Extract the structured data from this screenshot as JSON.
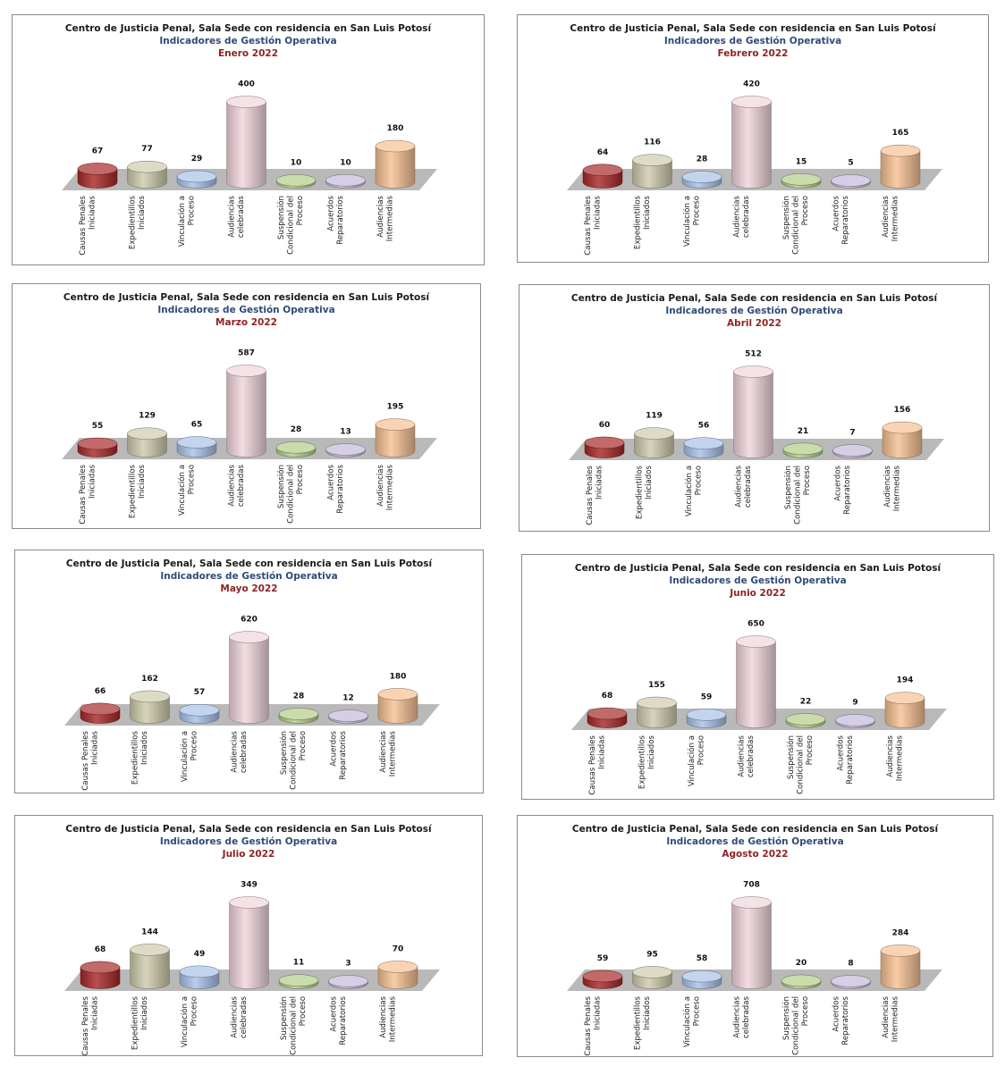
{
  "colors": {
    "series": [
      "#a82828",
      "#cfcbad",
      "#a9c1e8",
      "#f1d6dc",
      "#b3cc88",
      "#c3b9d8",
      "#f6c194"
    ],
    "floor": "#b9b9b9",
    "title_line_1": "#1a1a1a",
    "title_line_2": "#2f4a78",
    "title_line_3": "#8e2424"
  },
  "chart_data": [
    {
      "type": "bar",
      "title": "Centro de Justicia Penal, Sala Sede con residencia en San Luis Potosí",
      "subtitle": "Indicadores de Gestión Operativa",
      "period": "Enero 2022",
      "categories": [
        [
          "Causas Penales",
          "Iniciadas"
        ],
        [
          "Expedientillos",
          "Iniciados"
        ],
        [
          "Vinculación a",
          "Proceso"
        ],
        [
          "Audiencias",
          "celebradas"
        ],
        [
          "Suspensión",
          "Condicional del",
          "Proceso"
        ],
        [
          "Acuerdos",
          "Reparatorios"
        ],
        [
          "Audiencias",
          "Intermedias"
        ]
      ],
      "values": [
        67,
        77,
        29,
        400,
        10,
        10,
        180
      ],
      "ylim": [
        0,
        400
      ]
    },
    {
      "type": "bar",
      "title": "Centro de Justicia Penal, Sala Sede con residencia en San Luis Potosí",
      "subtitle": "Indicadores de Gestión Operativa",
      "period": "Febrero 2022",
      "categories": [
        [
          "Causas Penales",
          "Iniciadas"
        ],
        [
          "Expedientillos",
          "Iniciados"
        ],
        [
          "Vinculación a",
          "Proceso"
        ],
        [
          "Audiencias",
          "celebradas"
        ],
        [
          "Suspensión",
          "Condicional del",
          "Proceso"
        ],
        [
          "Acuerdos",
          "Reparatorios"
        ],
        [
          "Audiencias",
          "Intermedias"
        ]
      ],
      "values": [
        64,
        116,
        28,
        420,
        15,
        5,
        165
      ],
      "ylim": [
        0,
        420
      ]
    },
    {
      "type": "bar",
      "title": "Centro de Justicia Penal, Sala Sede con residencia en San Luis Potosí",
      "subtitle": "Indicadores de Gestión Operativa",
      "period": "Marzo 2022",
      "categories": [
        [
          "Causas Penales",
          "Iniciadas"
        ],
        [
          "Expedientillos",
          "Iniciados"
        ],
        [
          "Vinculación a",
          "Proceso"
        ],
        [
          "Audiencias",
          "celebradas"
        ],
        [
          "Suspensión",
          "Condicional del",
          "Proceso"
        ],
        [
          "Acuerdos",
          "Reparatorios"
        ],
        [
          "Audiencias",
          "Intermedias"
        ]
      ],
      "values": [
        55,
        129,
        65,
        587,
        28,
        13,
        195
      ],
      "ylim": [
        0,
        587
      ]
    },
    {
      "type": "bar",
      "title": "Centro de Justicia Penal, Sala Sede con residencia en San Luis Potosí",
      "subtitle": "Indicadores de Gestión Operativa",
      "period": "Abril 2022",
      "categories": [
        [
          "Causas Penales",
          "Iniciadas"
        ],
        [
          "Expedientillos",
          "Iniciados"
        ],
        [
          "Vinculación a",
          "Proceso"
        ],
        [
          "Audiencias",
          "celebradas"
        ],
        [
          "Suspensión",
          "Condicional del",
          "Proceso"
        ],
        [
          "Acuerdos",
          "Reparatorios"
        ],
        [
          "Audiencias",
          "Intermedias"
        ]
      ],
      "values": [
        60,
        119,
        56,
        512,
        21,
        7,
        156
      ],
      "ylim": [
        0,
        512
      ]
    },
    {
      "type": "bar",
      "title": "Centro de Justicia Penal, Sala Sede con residencia en San Luis Potosí",
      "subtitle": "Indicadores de Gestión Operativa",
      "period": "Mayo 2022",
      "categories": [
        [
          "Causas Penales",
          "Iniciadas"
        ],
        [
          "Expedientillos",
          "Iniciados"
        ],
        [
          "Vinculación a",
          "Proceso"
        ],
        [
          "Audiencias",
          "celebradas"
        ],
        [
          "Suspensión",
          "Condicional del",
          "Proceso"
        ],
        [
          "Acuerdos",
          "Reparatorios"
        ],
        [
          "Audiencias",
          "Intermedias"
        ]
      ],
      "values": [
        66,
        162,
        57,
        620,
        28,
        12,
        180
      ],
      "ylim": [
        0,
        620
      ]
    },
    {
      "type": "bar",
      "title": "Centro de Justicia Penal, Sala Sede con residencia en San Luis Potosí",
      "subtitle": "Indicadores de Gestión Operativa",
      "period": "Junio 2022",
      "categories": [
        [
          "Causas Penales",
          "Iniciadas"
        ],
        [
          "Expedientillos",
          "Iniciados"
        ],
        [
          "Vinculación a",
          "Proceso"
        ],
        [
          "Audiencias",
          "celebradas"
        ],
        [
          "Suspensión",
          "Condicional del",
          "Proceso"
        ],
        [
          "Acuerdos",
          "Reparatorios"
        ],
        [
          "Audiencias",
          "Intermedias"
        ]
      ],
      "values": [
        68,
        155,
        59,
        650,
        22,
        9,
        194
      ],
      "ylim": [
        0,
        650
      ]
    },
    {
      "type": "bar",
      "title": "Centro de Justicia Penal, Sala Sede con residencia en San Luis Potosí",
      "subtitle": "Indicadores de Gestión Operativa",
      "period": "Julio 2022",
      "categories": [
        [
          "Causas Penales",
          "Iniciadas"
        ],
        [
          "Expedientillos",
          "Iniciados"
        ],
        [
          "Vinculación a",
          "Proceso"
        ],
        [
          "Audiencias",
          "celebradas"
        ],
        [
          "Suspensión",
          "Condicional del",
          "Proceso"
        ],
        [
          "Acuerdos",
          "Reparatorios"
        ],
        [
          "Audiencias",
          "Intermedias"
        ]
      ],
      "values": [
        68,
        144,
        49,
        349,
        11,
        3,
        70
      ],
      "ylim": [
        0,
        349
      ]
    },
    {
      "type": "bar",
      "title": "Centro de Justicia Penal, Sala Sede con residencia en San Luis Potosí",
      "subtitle": "Indicadores de Gestión Operativa",
      "period": "Agosto 2022",
      "categories": [
        [
          "Causas Penales",
          "Iniciadas"
        ],
        [
          "Expedientillos",
          "Iniciados"
        ],
        [
          "Vinculación a",
          "Proceso"
        ],
        [
          "Audiencias",
          "celebradas"
        ],
        [
          "Suspensión",
          "Condicional del",
          "Proceso"
        ],
        [
          "Acuerdos",
          "Reparatorios"
        ],
        [
          "Audiencias",
          "Intermedias"
        ]
      ],
      "values": [
        59,
        95,
        58,
        708,
        20,
        8,
        284
      ],
      "ylim": [
        0,
        708
      ]
    }
  ]
}
